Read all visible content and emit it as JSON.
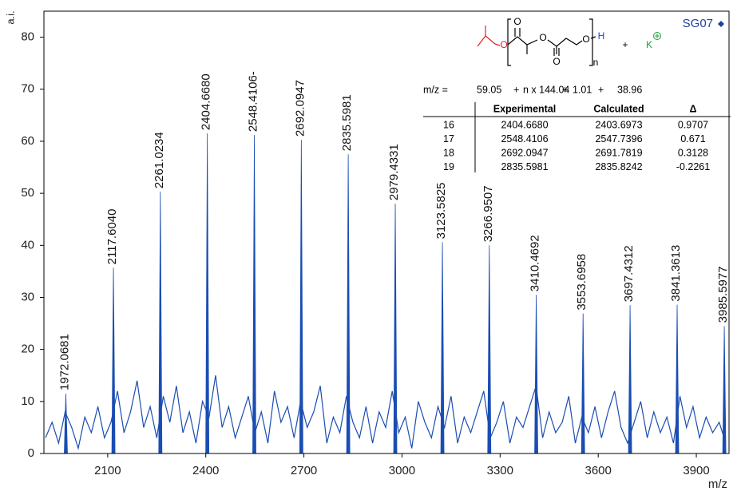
{
  "chart_data": {
    "type": "spectrum",
    "y_label": "a.i.",
    "x_label": "m/z",
    "xlim": [
      1905,
      4000
    ],
    "ylim": [
      0,
      85
    ],
    "xticks": [
      2100,
      2400,
      2700,
      3000,
      3300,
      3600,
      3900
    ],
    "yticks": [
      0,
      10,
      20,
      30,
      40,
      50,
      60,
      70,
      80
    ],
    "legend": {
      "name": "SG07",
      "color": "#1f3fa0",
      "position": "top-right"
    },
    "peaks": {
      "color": "#1a4db3",
      "x": [
        1972.0681,
        2117.604,
        2261.0234,
        2404.668,
        2548.4106,
        2692.0947,
        2835.5981,
        2979.4331,
        3123.5825,
        3266.9507,
        3410.4692,
        3553.6958,
        3697.4312,
        3841.3613,
        3985.5977
      ],
      "x_labels": [
        "1972.0681",
        "2117.6040",
        "2261.0234",
        "2404.6680",
        "2548.4106-",
        "2692.0947",
        "2835.5981",
        "2979.4331",
        "3123.5825",
        "3266.9507",
        "3410.4692",
        "3553.6958",
        "3697.4312",
        "3841.3613",
        "3985.5977"
      ],
      "values": [
        11.5,
        35.7,
        50.3,
        61.5,
        61.2,
        60.3,
        57.5,
        48,
        40.6,
        40,
        30.5,
        26.9,
        28.5,
        28.6,
        24.5
      ]
    },
    "noise": {
      "color": "#1a4db3",
      "x": [
        1910,
        1930,
        1950,
        1970,
        1990,
        2010,
        2030,
        2050,
        2070,
        2090,
        2110,
        2130,
        2150,
        2170,
        2190,
        2210,
        2230,
        2250,
        2270,
        2290,
        2310,
        2330,
        2350,
        2370,
        2390,
        2410,
        2430,
        2450,
        2470,
        2490,
        2510,
        2530,
        2550,
        2570,
        2590,
        2610,
        2630,
        2650,
        2670,
        2690,
        2710,
        2730,
        2750,
        2770,
        2790,
        2810,
        2830,
        2850,
        2870,
        2890,
        2910,
        2930,
        2950,
        2970,
        2990,
        3010,
        3030,
        3050,
        3070,
        3090,
        3110,
        3130,
        3150,
        3170,
        3190,
        3210,
        3230,
        3250,
        3270,
        3290,
        3310,
        3330,
        3350,
        3370,
        3390,
        3410,
        3430,
        3450,
        3470,
        3490,
        3510,
        3530,
        3550,
        3570,
        3590,
        3610,
        3630,
        3650,
        3670,
        3690,
        3710,
        3730,
        3750,
        3770,
        3790,
        3810,
        3830,
        3850,
        3870,
        3890,
        3910,
        3930,
        3950,
        3970,
        3990
      ],
      "values": [
        3,
        6,
        2,
        8,
        5,
        1,
        7,
        4,
        9,
        3,
        6,
        12,
        4,
        8,
        14,
        5,
        9,
        3,
        11,
        6,
        13,
        4,
        8,
        2,
        10,
        7,
        15,
        5,
        9,
        3,
        7,
        11,
        4,
        8,
        2,
        12,
        6,
        9,
        3,
        10,
        5,
        8,
        13,
        2,
        7,
        4,
        11,
        6,
        3,
        9,
        2,
        8,
        5,
        12,
        4,
        7,
        1,
        10,
        6,
        3,
        9,
        5,
        11,
        2,
        7,
        4,
        8,
        12,
        3,
        6,
        10,
        2,
        7,
        5,
        9,
        13,
        3,
        8,
        4,
        6,
        11,
        2,
        7,
        4,
        9,
        3,
        8,
        12,
        5,
        2,
        6,
        10,
        3,
        8,
        4,
        7,
        2,
        11,
        5,
        9,
        3,
        7,
        4,
        6,
        2
      ]
    },
    "formula": [
      {
        "text": "m/z =",
        "color": "#000000"
      },
      {
        "text": 59.05,
        "color": "#e02020"
      },
      {
        "text": "+",
        "color": "#000000"
      },
      {
        "text": "n x 144.04",
        "color": "#000000"
      },
      {
        "text": "+",
        "color": "#000000"
      },
      {
        "text": 1.01,
        "color": "#1f3fe0"
      },
      {
        "text": "+",
        "color": "#000000"
      },
      {
        "text": 38.96,
        "color": "#20a040"
      }
    ],
    "table": {
      "headers": [
        "Experimental",
        "Calculated",
        "Δ"
      ],
      "rows": [
        [
          16,
          "2404.6680",
          "2403.6973",
          "0.9707"
        ],
        [
          17,
          "2548.4106",
          "2547.7396",
          "0.671"
        ],
        [
          18,
          "2692.0947",
          "2691.7819",
          "0.3128"
        ],
        [
          19,
          "2835.5981",
          "2835.8242",
          "-0.2261"
        ]
      ]
    },
    "structure": {
      "labels": [
        {
          "text": "O",
          "color": "#e02020"
        },
        {
          "text": "O",
          "color": "#000000"
        },
        {
          "text": "O",
          "color": "#000000"
        },
        {
          "text": "O",
          "color": "#000000"
        },
        {
          "text": "O",
          "color": "#000000"
        },
        {
          "text": "H",
          "color": "#1f3fe0"
        },
        {
          "text": "n",
          "color": "#000000"
        },
        {
          "text": "+",
          "color": "#000000"
        },
        {
          "text": "K",
          "color": "#20a040"
        }
      ]
    }
  }
}
